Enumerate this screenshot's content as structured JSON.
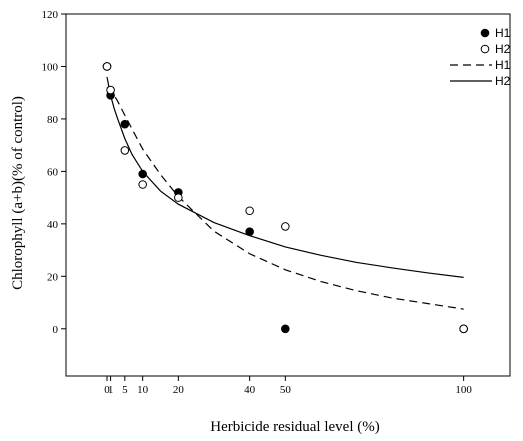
{
  "chart_data": {
    "type": "scatter",
    "title": "",
    "xlabel": "Herbicide residual level (%)",
    "ylabel": "Chlorophyll (a+b)(% of control)",
    "xlim": [
      -11.5,
      113
    ],
    "ylim": [
      -18,
      120
    ],
    "x_ticks": [
      0,
      1,
      5,
      10,
      20,
      40,
      50,
      100
    ],
    "x_tick_labels": [
      "0",
      "1",
      "5",
      "10",
      "20",
      "40",
      "50",
      "100"
    ],
    "y_ticks": [
      0,
      20,
      40,
      60,
      80,
      100,
      120
    ],
    "y_tick_labels": [
      "0",
      "20",
      "40",
      "60",
      "80",
      "100",
      "120"
    ],
    "grid": false,
    "legend_position": "top-right",
    "series": [
      {
        "name": "H1",
        "kind": "points",
        "marker": "filled-circle",
        "x": [
          0,
          1,
          5,
          10,
          20,
          40,
          50,
          100
        ],
        "y": [
          100,
          89,
          78,
          59,
          52,
          37,
          0,
          0
        ]
      },
      {
        "name": "H2",
        "kind": "points",
        "marker": "open-circle",
        "x": [
          0,
          1,
          5,
          10,
          20,
          40,
          50,
          100
        ],
        "y": [
          100,
          91,
          68,
          55,
          50,
          45,
          39,
          0
        ]
      },
      {
        "name": "H1",
        "kind": "fit",
        "line_style": "dashed",
        "x": [
          0,
          1,
          2,
          3,
          5,
          7,
          10,
          15,
          20,
          30,
          40,
          50,
          60,
          70,
          80,
          90,
          100
        ],
        "y": [
          92,
          90.8,
          89,
          86.7,
          81.4,
          76.2,
          68.5,
          58.8,
          50.4,
          37.2,
          28.6,
          22.5,
          18,
          14.5,
          11.7,
          9.6,
          7.5
        ]
      },
      {
        "name": "H2",
        "kind": "fit",
        "line_style": "solid",
        "x": [
          0,
          1,
          2,
          3,
          5,
          7,
          10,
          15,
          20,
          30,
          40,
          50,
          60,
          70,
          80,
          90,
          100
        ],
        "y": [
          96,
          89,
          84,
          80,
          72.5,
          66.5,
          60,
          52.5,
          47.5,
          40.5,
          35.5,
          31.2,
          28,
          25.3,
          23.2,
          21.3,
          19.6
        ]
      }
    ]
  }
}
